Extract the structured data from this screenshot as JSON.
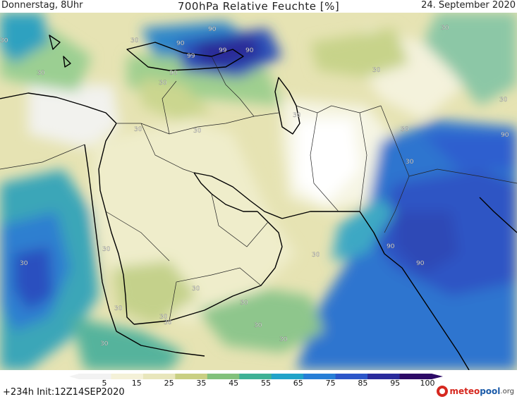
{
  "header": {
    "left": "Donnerstag, 8Uhr",
    "title": "700hPa Relative Feuchte [%]",
    "right": "24. September 2020"
  },
  "legend": {
    "tick_labels": [
      "5",
      "15",
      "25",
      "35",
      "45",
      "55",
      "65",
      "75",
      "85",
      "95",
      "100"
    ],
    "colors": [
      "#f2f2f2",
      "#f4f1d8",
      "#e8e6bc",
      "#c9cf83",
      "#82c17c",
      "#3fb195",
      "#21a3c9",
      "#277ed6",
      "#2c56c9",
      "#2a2b9c",
      "#2d0a66"
    ]
  },
  "map_labels": {
    "contour_values": [
      "30",
      "30",
      "30",
      "90",
      "90",
      "90",
      "90",
      "99",
      "99",
      "30",
      "30",
      "30",
      "30",
      "30",
      "30",
      "30",
      "30",
      "30",
      "30",
      "90",
      "30",
      "30",
      "30",
      "30",
      "30",
      "30",
      "30",
      "30",
      "30",
      "90",
      "90",
      "30"
    ]
  },
  "footer": {
    "init": "+234h Init:12Z14SEP2020",
    "logo": {
      "part1": "meteo",
      "part2": "pool",
      "part3": ".org"
    }
  }
}
